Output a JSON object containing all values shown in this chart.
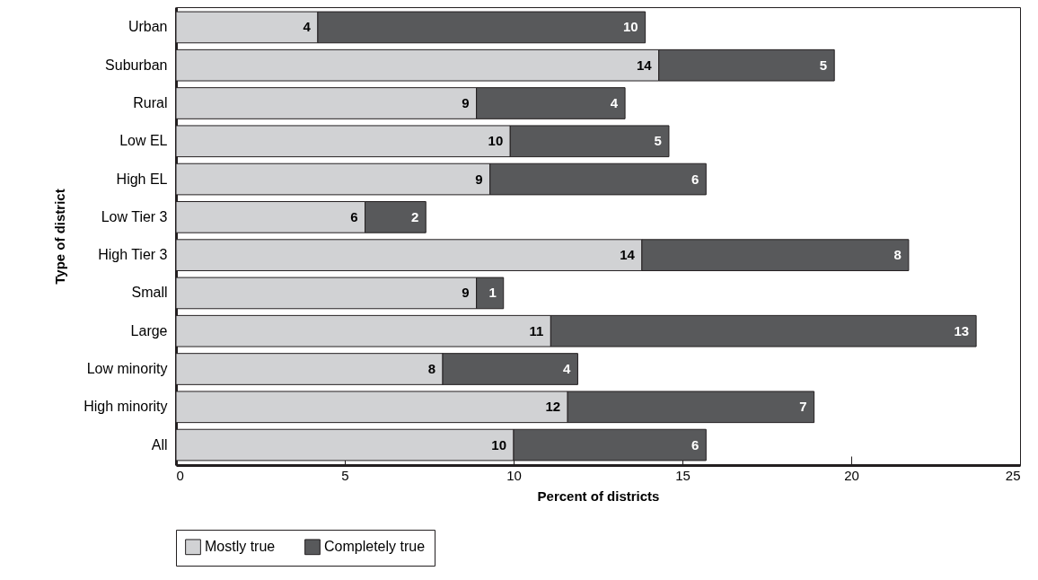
{
  "chart_data": {
    "type": "bar",
    "orientation": "horizontal",
    "stacked": true,
    "categories": [
      "Urban",
      "Suburban",
      "Rural",
      "Low EL",
      "High EL",
      "Low Tier 3",
      "High Tier 3",
      "Small",
      "Large",
      "Low minority",
      "High minority",
      "All"
    ],
    "series": [
      {
        "name": "Mostly true",
        "color": "#d1d2d4",
        "values": [
          4.2,
          14.3,
          8.9,
          9.9,
          9.3,
          5.6,
          13.8,
          8.9,
          11.1,
          7.9,
          11.6,
          10.0
        ],
        "value_labels": [
          "4",
          "14",
          "9",
          "10",
          "9",
          "6",
          "14",
          "9",
          "11",
          "8",
          "12",
          "10"
        ]
      },
      {
        "name": "Completely true",
        "color": "#58595b",
        "values": [
          9.7,
          5.2,
          4.4,
          4.7,
          6.4,
          1.8,
          7.9,
          0.8,
          12.6,
          4.0,
          7.3,
          5.7
        ],
        "value_labels": [
          "10",
          "5",
          "4",
          "5",
          "6",
          "2",
          "8",
          "1",
          "13",
          "4",
          "7",
          "6"
        ]
      }
    ],
    "xlim": [
      0,
      25
    ],
    "xticks": [
      0,
      5,
      10,
      15,
      20,
      25
    ],
    "xlabel": "Percent of districts",
    "ylabel": "Type of district",
    "grid": false,
    "legend": "bottom"
  }
}
